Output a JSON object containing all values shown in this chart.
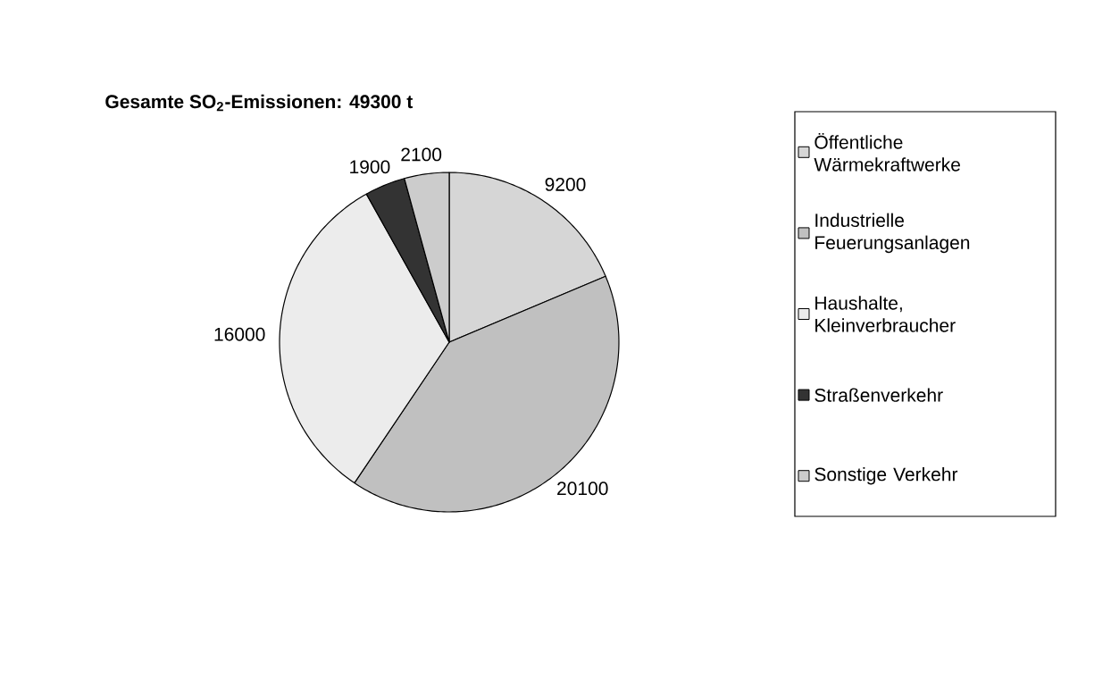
{
  "chart_data": {
    "type": "pie",
    "title": "**Gesamte SO$_{2}$-Emissionen: 49300 t**",
    "categories": [
      "Öffentliche Wärmekraftwerke",
      "Industrielle Feuerungsanlagen",
      "Haushalte, Kleinverbraucher",
      "Straßenverkehr",
      "Sonstige Verkehr"
    ],
    "values": [
      9200,
      20100,
      16000,
      1900,
      2100
    ],
    "colors": [
      "#d6d6d6",
      "#c0c0c0",
      "#ececec",
      "#333333",
      "#cccccc"
    ],
    "data_labels": true,
    "legend": "right"
  }
}
